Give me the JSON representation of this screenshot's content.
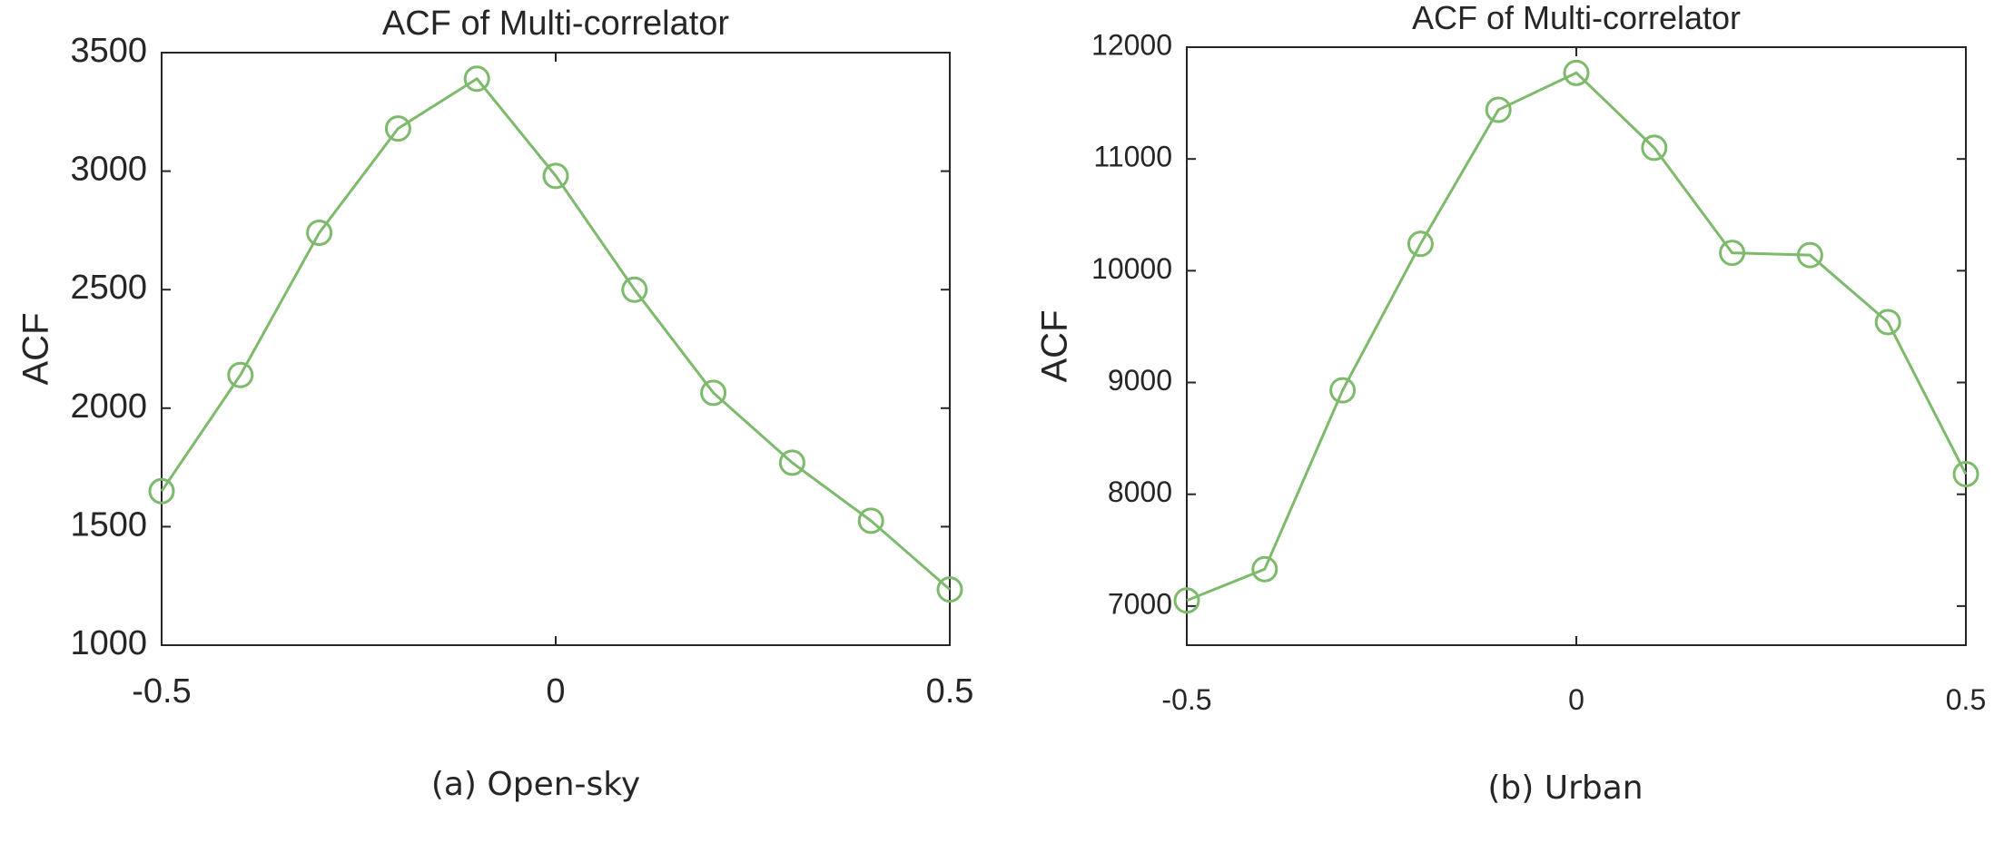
{
  "chart_data": [
    {
      "type": "line",
      "title": "ACF of Multi-correlator",
      "ylabel": "ACF",
      "xlabel": "",
      "xlim": [
        -0.5,
        0.5
      ],
      "ylim": [
        1000,
        3500
      ],
      "x_ticks": [
        "-0.5",
        "0",
        "0.5"
      ],
      "y_ticks": [
        "1000",
        "1500",
        "2000",
        "2500",
        "3000",
        "3500"
      ],
      "grid": false,
      "color": "#7dba6c",
      "marker": "circle",
      "x": [
        -0.5,
        -0.4,
        -0.3,
        -0.2,
        -0.1,
        0.0,
        0.1,
        0.2,
        0.3,
        0.4,
        0.5
      ],
      "values": [
        1650,
        2140,
        2740,
        3180,
        3390,
        2980,
        2500,
        2065,
        1770,
        1525,
        1235
      ],
      "caption": "(a) Open-sky"
    },
    {
      "type": "line",
      "title": "ACF of Multi-correlator",
      "ylabel": "ACF",
      "xlabel": "",
      "xlim": [
        -0.5,
        0.5
      ],
      "ylim": [
        6650,
        12000
      ],
      "x_ticks": [
        "-0.5",
        "0",
        "0.5"
      ],
      "y_ticks": [
        "7000",
        "8000",
        "9000",
        "10000",
        "11000",
        "12000"
      ],
      "grid": false,
      "color": "#7dba6c",
      "marker": "circle",
      "x": [
        -0.5,
        -0.4,
        -0.3,
        -0.2,
        -0.1,
        0.0,
        0.1,
        0.2,
        0.3,
        0.4,
        0.5
      ],
      "values": [
        7050,
        7330,
        8930,
        10240,
        11440,
        11770,
        11100,
        10160,
        10140,
        9540,
        8180
      ],
      "caption": "(b) Urban"
    }
  ]
}
